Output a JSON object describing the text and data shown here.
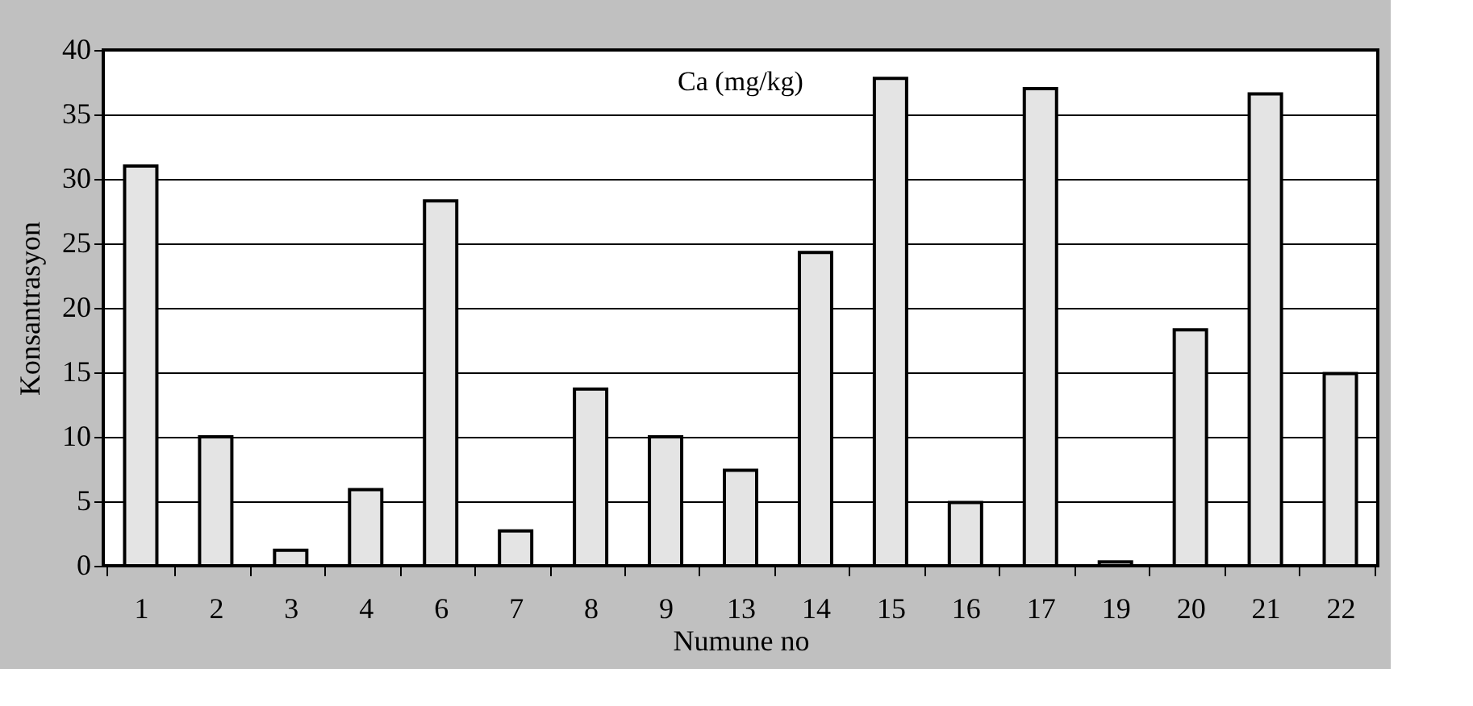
{
  "chart_data": {
    "type": "bar",
    "title": "Ca (mg/kg)",
    "xlabel": "Numune no",
    "ylabel": "Konsantrasyon",
    "categories": [
      "1",
      "2",
      "3",
      "4",
      "6",
      "7",
      "8",
      "9",
      "13",
      "14",
      "15",
      "16",
      "17",
      "19",
      "20",
      "21",
      "22"
    ],
    "values": [
      31.0,
      10.0,
      1.2,
      5.9,
      28.3,
      2.7,
      13.7,
      10.0,
      7.4,
      24.3,
      37.8,
      4.9,
      37.0,
      0.3,
      18.3,
      36.6,
      14.9
    ],
    "color": "#e4e4e4",
    "ylim": [
      0,
      40
    ],
    "yticks": [
      0,
      5,
      10,
      15,
      20,
      25,
      30,
      35,
      40
    ],
    "grid": "y"
  }
}
